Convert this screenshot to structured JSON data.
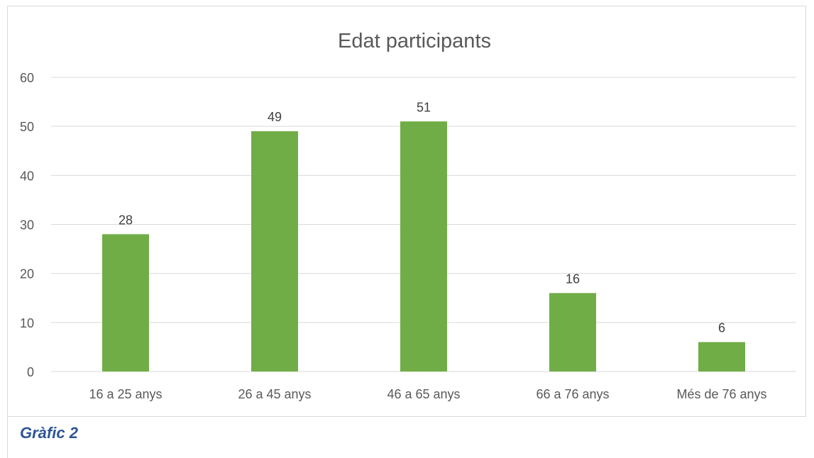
{
  "caption": "Gràfic 2",
  "colors": {
    "bar": "#70ad47",
    "grid": "#d9d9d9",
    "text": "#595959",
    "label": "#404040",
    "caption": "#2e5597"
  },
  "chart_data": {
    "type": "bar",
    "title": "Edat participants",
    "categories": [
      "16 a 25 anys",
      "26 a 45 anys",
      "46 a 65 anys",
      "66 a 76 anys",
      "Més de 76 anys"
    ],
    "values": [
      28,
      49,
      51,
      16,
      6
    ],
    "data_labels": [
      "28",
      "49",
      "51",
      "16",
      "6"
    ],
    "ylim": [
      0,
      60
    ],
    "yticks": [
      "0",
      "10",
      "20",
      "30",
      "40",
      "50",
      "60"
    ],
    "grid": true,
    "legend": "none"
  }
}
